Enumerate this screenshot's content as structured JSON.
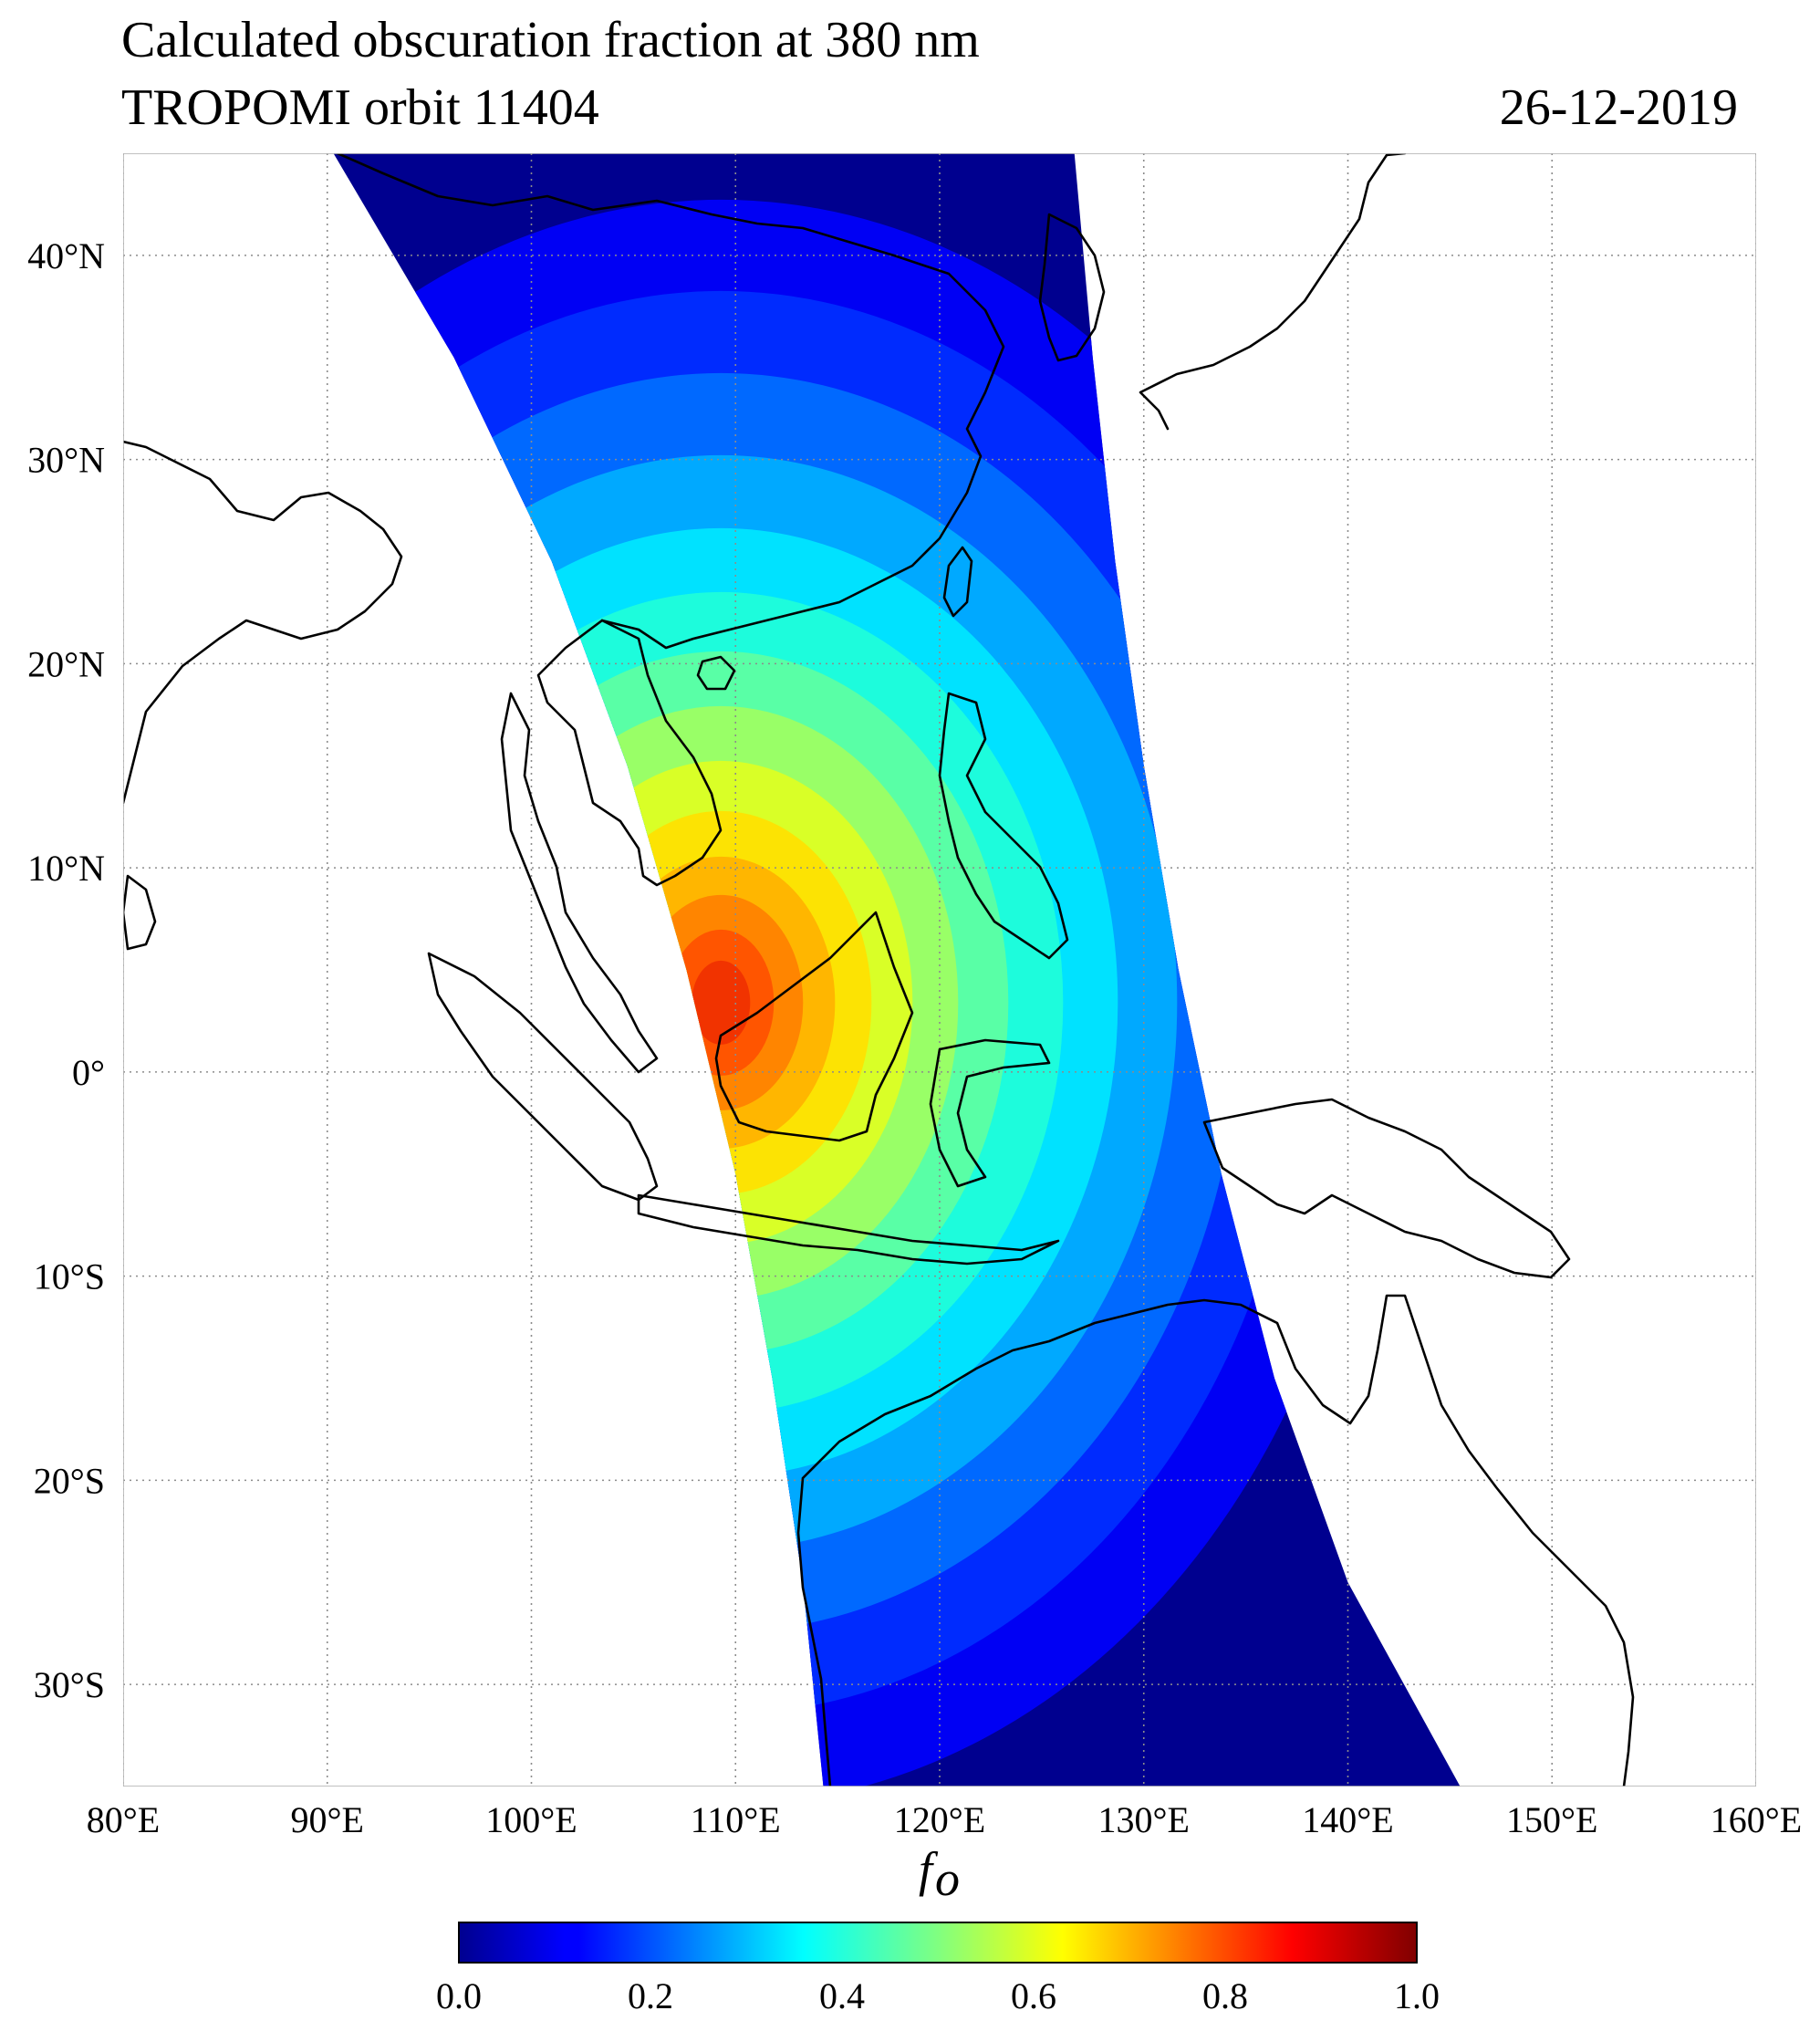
{
  "chart_data": {
    "type": "heatmap",
    "title": "Calculated obscuration fraction at 380 nm",
    "subtitle": "TROPOMI orbit 11404",
    "date": "26-12-2019",
    "xlabel": "f",
    "xlabel_sub": "o",
    "map_extent": {
      "lon": [
        80,
        160
      ],
      "lat": [
        -35,
        45
      ]
    },
    "lon_ticks": [
      80,
      90,
      100,
      110,
      120,
      130,
      140,
      150,
      160
    ],
    "lon_tick_labels": [
      "80°E",
      "90°E",
      "100°E",
      "110°E",
      "120°E",
      "130°E",
      "140°E",
      "150°E",
      "160°E"
    ],
    "lat_ticks": [
      40,
      30,
      20,
      10,
      0,
      -10,
      -20,
      -30
    ],
    "lat_tick_labels": [
      "40°N",
      "30°N",
      "20°N",
      "10°N",
      "0°",
      "10°S",
      "20°S",
      "30°S"
    ],
    "grid": true,
    "swath": {
      "west_edge": [
        [
          90.3,
          45
        ],
        [
          96.2,
          35
        ],
        [
          101,
          25
        ],
        [
          104.7,
          15
        ],
        [
          107.6,
          5
        ],
        [
          110,
          -5
        ],
        [
          111.8,
          -15
        ],
        [
          113.3,
          -25
        ],
        [
          114.3,
          -35
        ]
      ],
      "east_edge": [
        [
          126.6,
          45
        ],
        [
          127.5,
          35
        ],
        [
          128.6,
          25
        ],
        [
          130,
          15
        ],
        [
          131.7,
          5
        ],
        [
          133.8,
          -5
        ],
        [
          136.4,
          -15
        ],
        [
          140,
          -25
        ],
        [
          145.5,
          -35
        ]
      ]
    },
    "obscuration_peak": {
      "lon": 107.5,
      "lat": 2.5,
      "value": 0.88
    },
    "colorbar": {
      "colormap": "jet",
      "range": [
        0.0,
        1.0
      ],
      "ticks": [
        0.0,
        0.2,
        0.4,
        0.6,
        0.8,
        1.0
      ],
      "tick_labels": [
        "0.0",
        "0.2",
        "0.4",
        "0.6",
        "0.8",
        "1.0"
      ]
    }
  }
}
